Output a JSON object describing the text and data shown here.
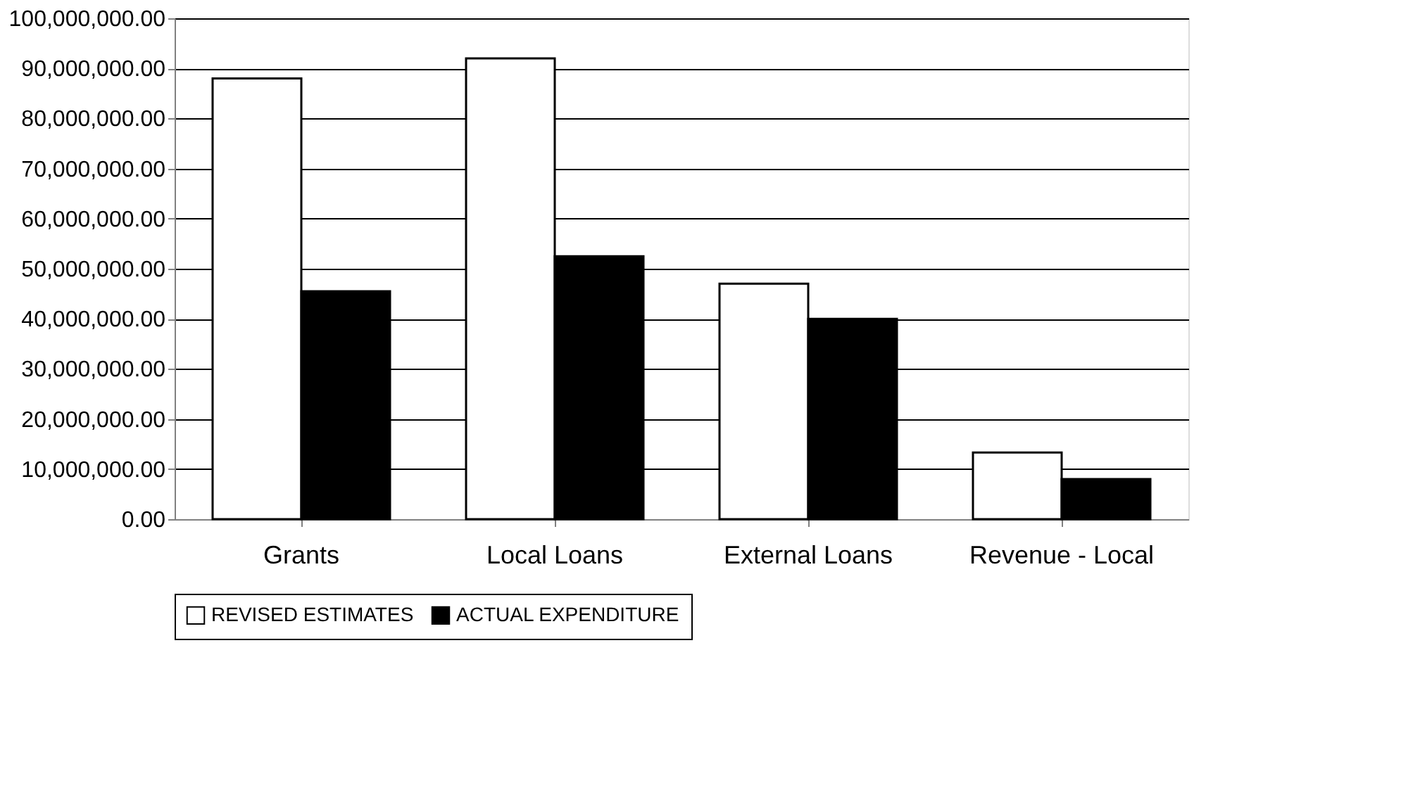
{
  "chart_data": {
    "type": "bar",
    "categories": [
      "Grants",
      "Local Loans",
      "External Loans",
      "Revenue - Local"
    ],
    "series": [
      {
        "name": "REVISED ESTIMATES",
        "color": "#ffffff",
        "values": [
          88000000,
          92000000,
          47000000,
          13300000
        ]
      },
      {
        "name": "ACTUAL EXPENDITURE",
        "color": "#000000",
        "values": [
          45500000,
          52500000,
          40000000,
          8000000
        ]
      }
    ],
    "ylim": [
      0,
      100000000
    ],
    "yticks": [
      {
        "value": 0,
        "label": "0.00"
      },
      {
        "value": 10000000,
        "label": "10,000,000.00"
      },
      {
        "value": 20000000,
        "label": "20,000,000.00"
      },
      {
        "value": 30000000,
        "label": "30,000,000.00"
      },
      {
        "value": 40000000,
        "label": "40,000,000.00"
      },
      {
        "value": 50000000,
        "label": "50,000,000.00"
      },
      {
        "value": 60000000,
        "label": "60,000,000.00"
      },
      {
        "value": 70000000,
        "label": "70,000,000.00"
      },
      {
        "value": 80000000,
        "label": "80,000,000.00"
      },
      {
        "value": 90000000,
        "label": "90,000,000.00"
      },
      {
        "value": 100000000,
        "label": "100,000,000.00"
      }
    ],
    "grid": "y",
    "legend": "bottom"
  }
}
